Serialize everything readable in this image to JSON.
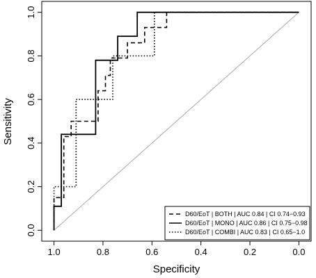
{
  "chart_data": {
    "type": "line",
    "xlabel": "Specificity",
    "ylabel": "Sensitivity",
    "xlim": [
      1.05,
      -0.05
    ],
    "ylim": [
      -0.05,
      1.05
    ],
    "x_reversed": true,
    "xticks": [
      "1.0",
      "0.8",
      "0.6",
      "0.4",
      "0.2",
      "0.0"
    ],
    "yticks": [
      "0.0",
      "0.2",
      "0.4",
      "0.6",
      "0.8",
      "1.0"
    ],
    "grid": false,
    "legend_position": "bottom-right",
    "reference_line": {
      "points": [
        [
          1.0,
          0.0
        ],
        [
          0.0,
          1.0
        ]
      ],
      "color": "#aaaaaa"
    },
    "series": [
      {
        "name": "D60/EoT | BOTH | AUC 0.84 | CI 0.74−0.93",
        "style": "dashed",
        "points": [
          [
            1.0,
            0.0
          ],
          [
            1.0,
            0.15
          ],
          [
            0.96,
            0.15
          ],
          [
            0.96,
            0.43
          ],
          [
            0.93,
            0.43
          ],
          [
            0.93,
            0.5
          ],
          [
            0.82,
            0.5
          ],
          [
            0.82,
            0.64
          ],
          [
            0.79,
            0.64
          ],
          [
            0.79,
            0.71
          ],
          [
            0.77,
            0.71
          ],
          [
            0.77,
            0.79
          ],
          [
            0.7,
            0.79
          ],
          [
            0.7,
            0.86
          ],
          [
            0.63,
            0.86
          ],
          [
            0.63,
            0.93
          ],
          [
            0.54,
            0.93
          ],
          [
            0.54,
            1.0
          ],
          [
            0.0,
            1.0
          ]
        ]
      },
      {
        "name": "D60/EoT | MONO | AUC 0.86 | CI 0.75−0.98",
        "style": "solid",
        "points": [
          [
            1.0,
            0.0
          ],
          [
            1.0,
            0.11
          ],
          [
            0.97,
            0.11
          ],
          [
            0.97,
            0.44
          ],
          [
            0.83,
            0.44
          ],
          [
            0.83,
            0.78
          ],
          [
            0.74,
            0.78
          ],
          [
            0.74,
            0.89
          ],
          [
            0.66,
            0.89
          ],
          [
            0.66,
            1.0
          ],
          [
            0.0,
            1.0
          ]
        ]
      },
      {
        "name": "D60/EoT | COMBI | AUC 0.83 | CI 0.65−1.0",
        "style": "dotted",
        "points": [
          [
            1.0,
            0.0
          ],
          [
            1.0,
            0.2
          ],
          [
            0.91,
            0.2
          ],
          [
            0.91,
            0.6
          ],
          [
            0.76,
            0.6
          ],
          [
            0.76,
            0.8
          ],
          [
            0.59,
            0.8
          ],
          [
            0.59,
            1.0
          ],
          [
            0.0,
            1.0
          ]
        ]
      }
    ]
  }
}
